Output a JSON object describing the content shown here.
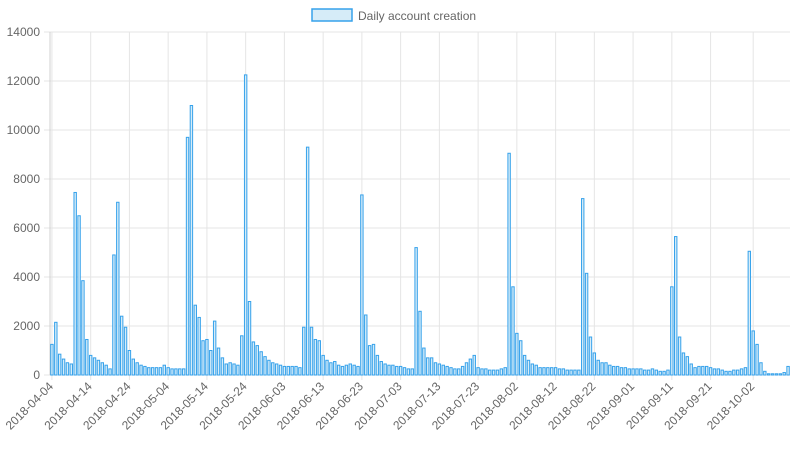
{
  "chart_data": {
    "type": "bar",
    "legend": {
      "label": "Daily account creation",
      "placement": "top-center"
    },
    "colors": {
      "bar_fill": "#d6ecf8",
      "bar_stroke": "#36a2eb",
      "grid": "#e5e5e5",
      "tick_text": "#666666"
    },
    "ylim": [
      0,
      14000
    ],
    "yticks": [
      0,
      2000,
      4000,
      6000,
      8000,
      10000,
      12000,
      14000
    ],
    "x_start": "2018-04-04",
    "x_tick_labels": [
      "2018-04-04",
      "2018-04-14",
      "2018-04-24",
      "2018-05-04",
      "2018-05-14",
      "2018-05-24",
      "2018-06-03",
      "2018-06-13",
      "2018-06-23",
      "2018-07-03",
      "2018-07-13",
      "2018-07-23",
      "2018-08-02",
      "2018-08-12",
      "2018-08-22",
      "2018-09-01",
      "2018-09-11",
      "2018-09-21",
      "2018-10-02"
    ],
    "values": [
      1250,
      2150,
      850,
      650,
      500,
      450,
      7450,
      6500,
      3850,
      1450,
      800,
      700,
      600,
      500,
      400,
      250,
      4900,
      7050,
      2400,
      1950,
      1000,
      650,
      500,
      400,
      350,
      300,
      300,
      300,
      300,
      400,
      300,
      250,
      250,
      250,
      250,
      9700,
      11000,
      2850,
      2350,
      1400,
      1450,
      1000,
      2200,
      1100,
      700,
      450,
      500,
      450,
      400,
      1600,
      12250,
      3000,
      1350,
      1200,
      950,
      750,
      600,
      500,
      450,
      400,
      350,
      350,
      350,
      350,
      300,
      1950,
      9300,
      1950,
      1450,
      1400,
      800,
      600,
      500,
      550,
      400,
      350,
      400,
      450,
      400,
      350,
      7350,
      2450,
      1200,
      1250,
      800,
      550,
      450,
      400,
      400,
      350,
      350,
      300,
      250,
      250,
      5200,
      2600,
      1100,
      700,
      700,
      500,
      450,
      400,
      350,
      300,
      250,
      250,
      350,
      500,
      650,
      800,
      300,
      250,
      250,
      200,
      200,
      200,
      250,
      300,
      9050,
      3600,
      1700,
      1400,
      800,
      600,
      450,
      400,
      300,
      300,
      300,
      300,
      300,
      250,
      250,
      200,
      200,
      200,
      200,
      7200,
      4150,
      1550,
      900,
      600,
      500,
      500,
      400,
      350,
      350,
      300,
      300,
      250,
      250,
      250,
      250,
      200,
      200,
      250,
      200,
      150,
      150,
      200,
      3600,
      5650,
      1550,
      900,
      750,
      450,
      300,
      350,
      350,
      350,
      300,
      250,
      250,
      200,
      150,
      150,
      200,
      200,
      250,
      300,
      5050,
      1800,
      1250,
      500,
      150,
      50,
      50,
      50,
      50,
      100,
      350
    ]
  }
}
